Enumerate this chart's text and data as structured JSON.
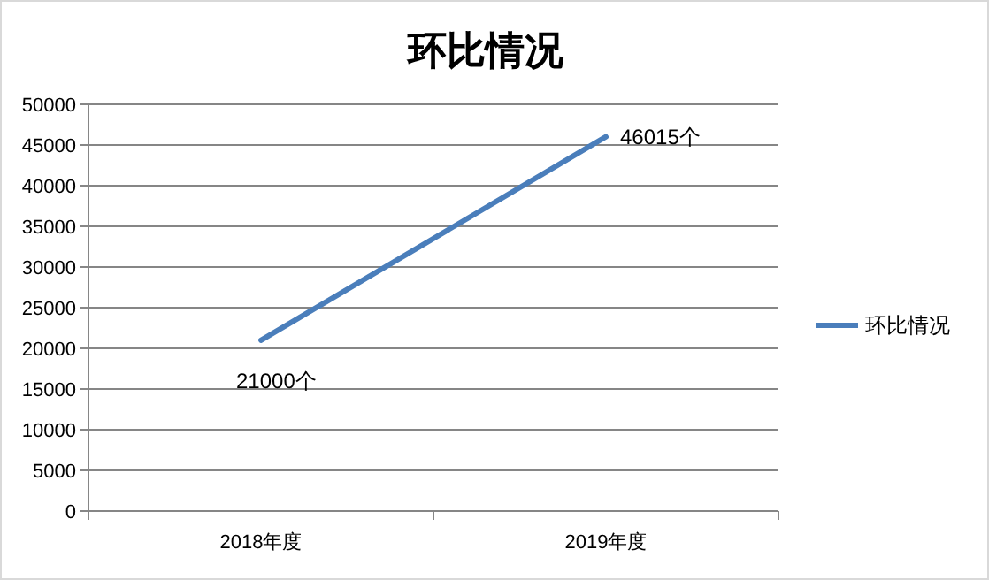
{
  "chart_data": {
    "type": "line",
    "title": "环比情况",
    "categories": [
      "2018年度",
      "2019年度"
    ],
    "series": [
      {
        "name": "环比情况",
        "color": "#4a7ebb",
        "values": [
          21000,
          46015
        ],
        "value_labels": [
          "21000个",
          "46015个"
        ]
      }
    ],
    "ylim": [
      0,
      50000
    ],
    "yticks": [
      0,
      5000,
      10000,
      15000,
      20000,
      25000,
      30000,
      35000,
      40000,
      45000,
      50000
    ],
    "grid": "y",
    "legend": "right",
    "marker": "none",
    "line_style": "solid"
  }
}
